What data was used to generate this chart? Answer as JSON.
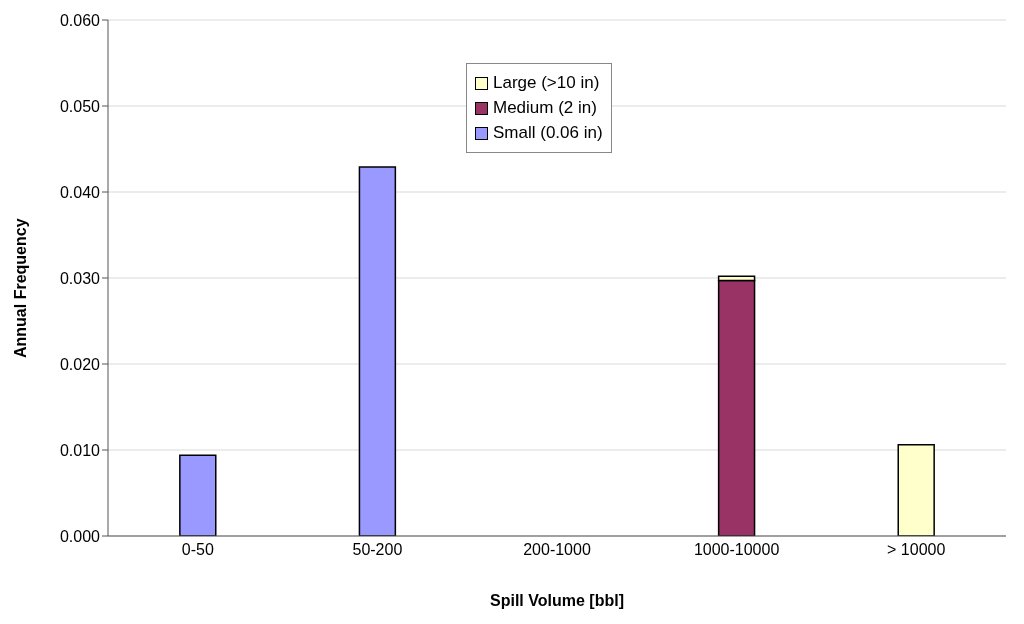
{
  "chart_data": {
    "type": "bar",
    "xlabel": "Spill Volume [bbl]",
    "ylabel": "Annual Frequency",
    "categories": [
      "0-50",
      "50-200",
      "200-1000",
      "1000-10000",
      "> 10000"
    ],
    "stacked": true,
    "series": [
      {
        "name": "Small (0.06 in)",
        "color": "#9999ff",
        "values": [
          0.0094,
          0.0429,
          0,
          0,
          0
        ]
      },
      {
        "name": "Medium (2 in)",
        "color": "#993366",
        "values": [
          0,
          0,
          0,
          0.0297,
          0
        ]
      },
      {
        "name": "Large (>10 in)",
        "color": "#ffffcc",
        "values": [
          0,
          0,
          0,
          0.0005,
          0.0106
        ]
      }
    ],
    "ylim": [
      0,
      0.06
    ],
    "yticks": [
      {
        "value": 0,
        "label": "0.000"
      },
      {
        "value": 0.01,
        "label": "0.010"
      },
      {
        "value": 0.02,
        "label": "0.020"
      },
      {
        "value": 0.03,
        "label": "0.030"
      },
      {
        "value": 0.04,
        "label": "0.040"
      },
      {
        "value": 0.05,
        "label": "0.050"
      },
      {
        "value": 0.06,
        "label": "0.060"
      }
    ],
    "grid": "y",
    "legend": "top"
  }
}
